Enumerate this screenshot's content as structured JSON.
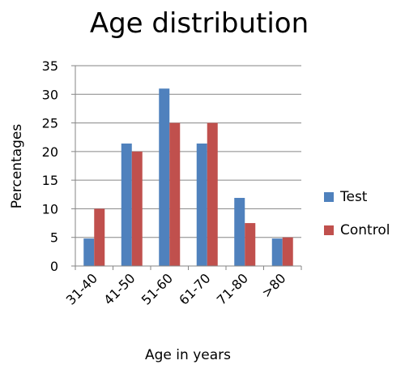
{
  "chart_data": {
    "type": "bar",
    "title": "Age distribution",
    "xlabel": "Age in years",
    "ylabel": "Percentages",
    "categories": [
      "31-40",
      "41-50",
      "51-60",
      "61-70",
      "71-80",
      ">80"
    ],
    "series": [
      {
        "name": "Test",
        "values": [
          4.8,
          21.4,
          31.0,
          21.4,
          11.9,
          4.8
        ],
        "color": "#4F81BD"
      },
      {
        "name": "Control",
        "values": [
          10,
          20,
          25,
          25,
          7.5,
          5
        ],
        "color": "#C0504D"
      }
    ],
    "ylim": [
      0,
      35
    ],
    "yticks": [
      0,
      5,
      10,
      15,
      20,
      25,
      30,
      35
    ],
    "grid": true,
    "legend_position": "right"
  }
}
